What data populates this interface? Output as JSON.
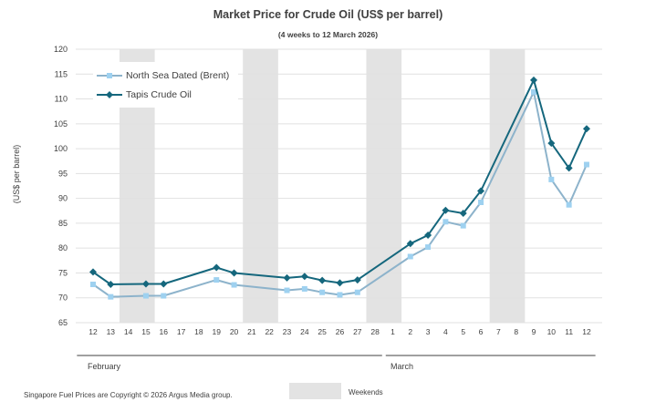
{
  "chart_data": {
    "type": "line",
    "title": "Market Price for Crude Oil (US$ per barrel)",
    "subtitle": "(4 weeks to 12 March 2026)",
    "ylabel": "(US$ per barrel)",
    "ylim": [
      65,
      120
    ],
    "y_ticks": [
      65,
      70,
      75,
      80,
      85,
      90,
      95,
      100,
      105,
      110,
      115,
      120
    ],
    "categories": [
      "12",
      "13",
      "14",
      "15",
      "16",
      "17",
      "18",
      "19",
      "20",
      "21",
      "22",
      "23",
      "24",
      "25",
      "26",
      "27",
      "28",
      "1",
      "2",
      "3",
      "4",
      "5",
      "6",
      "7",
      "8",
      "9",
      "10",
      "11",
      "12"
    ],
    "months": [
      {
        "label": "February",
        "first_index": 0,
        "last_index": 16
      },
      {
        "label": "March",
        "first_index": 17,
        "last_index": 28
      }
    ],
    "weekends": [
      [
        1.5,
        3.5
      ],
      [
        8.5,
        10.5
      ],
      [
        15.5,
        17.5
      ],
      [
        22.5,
        24.5
      ]
    ],
    "weekend_label": "Weekends",
    "series": [
      {
        "name": "North Sea Dated (Brent)",
        "color": "#8db3cb",
        "marker": "square",
        "marker_color": "#9ed1f0",
        "points": [
          [
            0,
            72.7
          ],
          [
            1,
            70.2
          ],
          [
            3,
            70.4
          ],
          [
            4,
            70.4
          ],
          [
            7,
            73.6
          ],
          [
            8,
            72.6
          ],
          [
            11,
            71.5
          ],
          [
            12,
            71.8
          ],
          [
            13,
            71.1
          ],
          [
            14,
            70.6
          ],
          [
            15,
            71.1
          ],
          [
            18,
            78.3
          ],
          [
            19,
            80.2
          ],
          [
            20,
            85.3
          ],
          [
            21,
            84.5
          ],
          [
            22,
            89.2
          ],
          [
            25,
            111.4
          ],
          [
            26,
            93.8
          ],
          [
            27,
            88.7
          ],
          [
            28,
            96.8
          ]
        ]
      },
      {
        "name": "Tapis Crude Oil",
        "color": "#15677d",
        "marker": "diamond",
        "marker_color": "#15677d",
        "points": [
          [
            0,
            75.2
          ],
          [
            1,
            72.7
          ],
          [
            3,
            72.8
          ],
          [
            4,
            72.8
          ],
          [
            7,
            76.1
          ],
          [
            8,
            75.0
          ],
          [
            11,
            74.0
          ],
          [
            12,
            74.3
          ],
          [
            13,
            73.5
          ],
          [
            14,
            73.0
          ],
          [
            15,
            73.6
          ],
          [
            18,
            80.9
          ],
          [
            19,
            82.6
          ],
          [
            20,
            87.6
          ],
          [
            21,
            87.0
          ],
          [
            22,
            91.5
          ],
          [
            25,
            113.8
          ],
          [
            26,
            101.1
          ],
          [
            27,
            96.1
          ],
          [
            28,
            104.0
          ]
        ]
      }
    ]
  },
  "footer": {
    "copyright": "Singapore  Fuel Prices are Copyright © 2026  Argus Media group."
  }
}
